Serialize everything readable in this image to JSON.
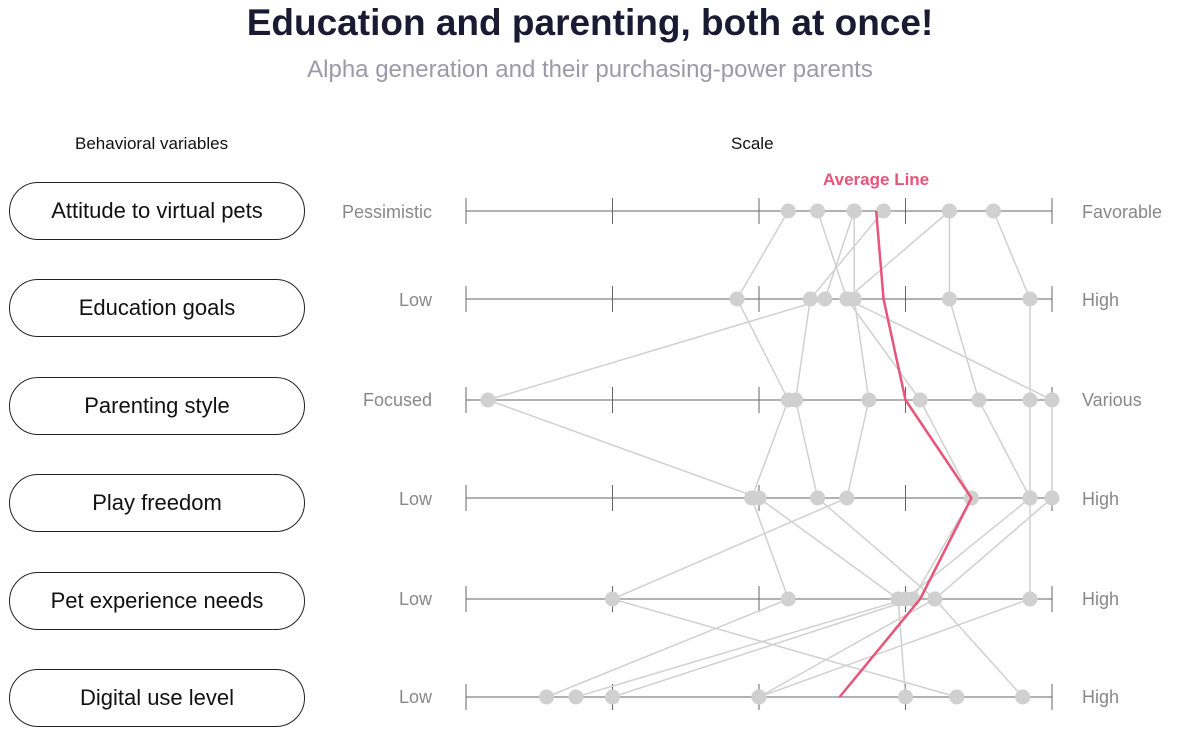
{
  "header": {
    "title": "Education and parenting, both at once!",
    "subtitle": "Alpha generation and their purchasing-power parents"
  },
  "columns": {
    "variables": "Behavioral variables",
    "scale": "Scale"
  },
  "average_label": "Average Line",
  "colors": {
    "average": "#e8547a",
    "respondent": "#d0d0d0",
    "axis": "#666666"
  },
  "chart_data": {
    "type": "line",
    "scale_min": 0,
    "scale_max": 4,
    "rows": [
      {
        "name": "Attitude to virtual pets",
        "low": "Pessimistic",
        "high": "Favorable"
      },
      {
        "name": "Education goals",
        "low": "Low",
        "high": "High"
      },
      {
        "name": "Parenting style",
        "low": "Focused",
        "high": "Various"
      },
      {
        "name": "Play freedom",
        "low": "Low",
        "high": "High"
      },
      {
        "name": "Pet experience needs",
        "low": "Low",
        "high": "High"
      },
      {
        "name": "Digital use level",
        "low": "Low",
        "high": "High"
      }
    ],
    "average": [
      2.8,
      2.85,
      3.0,
      3.45,
      3.1,
      2.55
    ],
    "respondents": [
      [
        2.2,
        1.85,
        2.2,
        1.95,
        2.2,
        0.55
      ],
      [
        2.4,
        2.6,
        3.1,
        3.45,
        3.05,
        1.0
      ],
      [
        2.65,
        2.45,
        0.15,
        2.0,
        2.95,
        3.0
      ],
      [
        2.65,
        2.65,
        2.75,
        2.6,
        1.0,
        3.35
      ],
      [
        2.85,
        2.35,
        2.25,
        2.4,
        3.2,
        2.0
      ],
      [
        3.3,
        3.3,
        3.5,
        3.85,
        3.0,
        0.75
      ],
      [
        3.6,
        3.85,
        3.85,
        3.85,
        3.85,
        2.0
      ],
      [
        3.3,
        2.6,
        4.0,
        4.0,
        3.2,
        3.8
      ]
    ]
  }
}
